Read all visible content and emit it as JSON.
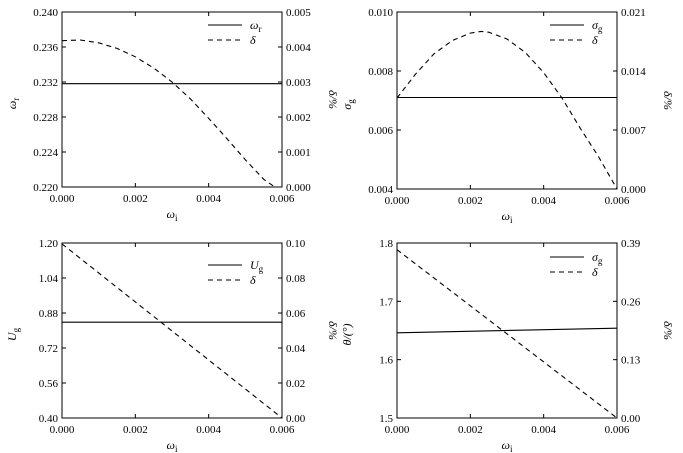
{
  "chart_data": [
    {
      "type": "line",
      "xlabel": "ω",
      "xlabel_sub": "i",
      "ylabel": "ω",
      "ylabel_sub": "r",
      "y2label": "δ/%",
      "xlim": [
        0,
        0.006
      ],
      "ylim": [
        0.22,
        0.24
      ],
      "y2lim": [
        0,
        0.005
      ],
      "xticks": [
        "0.000",
        "0.002",
        "0.004",
        "0.006"
      ],
      "yticks": [
        "0.220",
        "0.224",
        "0.228",
        "0.232",
        "0.236",
        "0.240"
      ],
      "y2ticks": [
        "0.000",
        "0.001",
        "0.002",
        "0.003",
        "0.004",
        "0.005"
      ],
      "legend": [
        {
          "label": "ω",
          "sub": "r",
          "style": "solid"
        },
        {
          "label": "δ",
          "sub": "",
          "style": "dashed"
        }
      ],
      "series": [
        {
          "style": "solid",
          "axis": "left",
          "x": [
            0.0,
            0.006
          ],
          "y": [
            0.2318,
            0.2318
          ]
        },
        {
          "style": "dashed",
          "axis": "right",
          "x": [
            0.0,
            0.0005,
            0.001,
            0.0015,
            0.002,
            0.0025,
            0.003,
            0.0035,
            0.004,
            0.0045,
            0.005,
            0.0055,
            0.0058,
            0.006
          ],
          "y": [
            0.00418,
            0.0042,
            0.00412,
            0.00396,
            0.00372,
            0.0034,
            0.003,
            0.00252,
            0.00196,
            0.00138,
            0.00078,
            0.00022,
            0.0,
            0.0
          ]
        }
      ]
    },
    {
      "type": "line",
      "xlabel": "ω",
      "xlabel_sub": "i",
      "ylabel": "σ",
      "ylabel_sub": "g",
      "y2label": "δ/%",
      "xlim": [
        0,
        0.006
      ],
      "ylim": [
        0.004,
        0.01
      ],
      "y2lim": [
        0,
        0.021
      ],
      "xticks": [
        "0.000",
        "0.002",
        "0.004",
        "0.006"
      ],
      "yticks": [
        "0.004",
        "0.006",
        "0.008",
        "0.010"
      ],
      "y2ticks": [
        "0.000",
        "0.007",
        "0.014",
        "0.021"
      ],
      "legend": [
        {
          "label": "σ",
          "sub": "g",
          "style": "solid"
        },
        {
          "label": "δ",
          "sub": "",
          "style": "dashed"
        }
      ],
      "series": [
        {
          "style": "solid",
          "axis": "left",
          "x": [
            0.0,
            0.006
          ],
          "y": [
            0.0071,
            0.0071
          ]
        },
        {
          "style": "dashed",
          "axis": "right",
          "x": [
            0.0,
            0.0005,
            0.001,
            0.0015,
            0.002,
            0.0023,
            0.0025,
            0.003,
            0.0035,
            0.004,
            0.0045,
            0.005,
            0.0055,
            0.006
          ],
          "y": [
            0.0108,
            0.0136,
            0.016,
            0.0176,
            0.0185,
            0.0187,
            0.0186,
            0.0178,
            0.0162,
            0.0138,
            0.0108,
            0.0072,
            0.0038,
            0.0
          ]
        }
      ]
    },
    {
      "type": "line",
      "xlabel": "ω",
      "xlabel_sub": "i",
      "ylabel": "U",
      "ylabel_sub": "g",
      "y2label": "δ/%",
      "xlim": [
        0,
        0.006
      ],
      "ylim": [
        0.4,
        1.2
      ],
      "y2lim": [
        0,
        0.1
      ],
      "xticks": [
        "0.000",
        "0.002",
        "0.004",
        "0.006"
      ],
      "yticks": [
        "0.40",
        "0.56",
        "0.72",
        "0.88",
        "1.04",
        "1.20"
      ],
      "y2ticks": [
        "0.00",
        "0.02",
        "0.04",
        "0.06",
        "0.08",
        "0.10"
      ],
      "legend": [
        {
          "label": "U",
          "sub": "g",
          "style": "solid"
        },
        {
          "label": "δ",
          "sub": "",
          "style": "dashed"
        }
      ],
      "series": [
        {
          "style": "solid",
          "axis": "left",
          "x": [
            0.0,
            0.006
          ],
          "y": [
            0.838,
            0.838
          ]
        },
        {
          "style": "dashed",
          "axis": "right",
          "x": [
            0.0,
            0.006
          ],
          "y": [
            0.0995,
            0.0
          ]
        }
      ]
    },
    {
      "type": "line",
      "xlabel": "ω",
      "xlabel_sub": "i",
      "ylabel": "θ/(°)",
      "ylabel_sub": "",
      "y2label": "δ/%",
      "xlim": [
        0,
        0.006
      ],
      "ylim": [
        1.5,
        1.8
      ],
      "y2lim": [
        0,
        0.39
      ],
      "xticks": [
        "0.000",
        "0.002",
        "0.004",
        "0.006"
      ],
      "yticks": [
        "1.5",
        "1.6",
        "1.7",
        "1.8"
      ],
      "y2ticks": [
        "0.00",
        "0.13",
        "0.26",
        "0.39"
      ],
      "legend": [
        {
          "label": "σ",
          "sub": "g",
          "style": "solid"
        },
        {
          "label": "δ",
          "sub": "",
          "style": "dashed"
        }
      ],
      "series": [
        {
          "style": "solid",
          "axis": "left",
          "x": [
            0.0,
            0.006
          ],
          "y": [
            1.646,
            1.654
          ]
        },
        {
          "style": "dashed",
          "axis": "right",
          "x": [
            0.0,
            0.006
          ],
          "y": [
            0.375,
            0.0
          ]
        }
      ]
    }
  ]
}
